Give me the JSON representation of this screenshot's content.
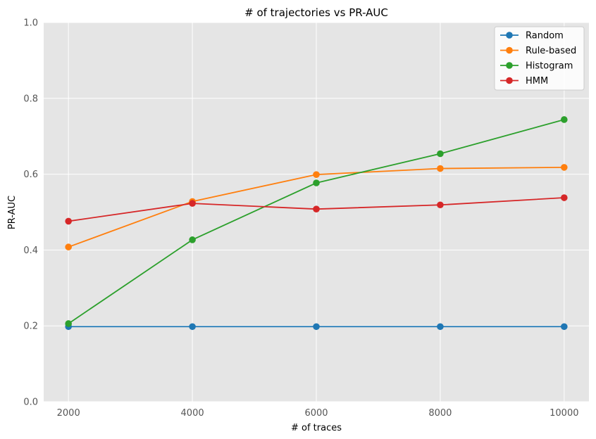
{
  "chart_data": {
    "type": "line",
    "title": "# of trajectories vs PR-AUC",
    "xlabel": "# of traces",
    "ylabel": "PR-AUC",
    "x": [
      2000,
      4000,
      6000,
      8000,
      10000
    ],
    "x_ticks": [
      "2000",
      "4000",
      "6000",
      "8000",
      "10000"
    ],
    "y_ticks": [
      "0.0",
      "0.2",
      "0.4",
      "0.6",
      "0.8",
      "1.0"
    ],
    "ylim": [
      0,
      1
    ],
    "xlim": [
      1600,
      10400
    ],
    "grid": true,
    "legend_position": "top-right",
    "series": [
      {
        "name": "Random",
        "color": "#1f77b4",
        "values": [
          0.198,
          0.198,
          0.198,
          0.198,
          0.198
        ]
      },
      {
        "name": "Rule-based",
        "color": "#ff7f0e",
        "values": [
          0.408,
          0.528,
          0.599,
          0.615,
          0.618
        ]
      },
      {
        "name": "Histogram",
        "color": "#2ca02c",
        "values": [
          0.206,
          0.427,
          0.577,
          0.654,
          0.744
        ]
      },
      {
        "name": "HMM",
        "color": "#d62728",
        "values": [
          0.476,
          0.523,
          0.508,
          0.519,
          0.538
        ]
      }
    ]
  }
}
